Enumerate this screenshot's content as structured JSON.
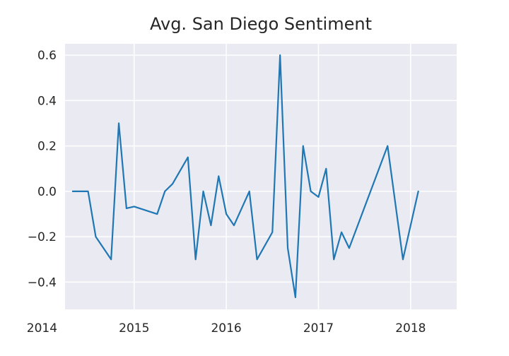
{
  "chart_data": {
    "type": "line",
    "title": "Avg. San Diego Sentiment",
    "xlabel": "",
    "ylabel": "",
    "x_ticks": [
      "2014",
      "2015",
      "2016",
      "2017",
      "2018"
    ],
    "y_ticks": [
      "0.6",
      "0.4",
      "0.2",
      "0.0",
      "−0.2",
      "−0.4"
    ],
    "y_tick_values": [
      0.6,
      0.4,
      0.2,
      0.0,
      -0.2,
      -0.4
    ],
    "x_range": [
      "2014-04",
      "2018-07"
    ],
    "ylim": [
      -0.52,
      0.65
    ],
    "grid": true,
    "background": "#eaeaf2",
    "series": [
      {
        "color": "#1f77b4",
        "points": [
          {
            "x": "2014-05",
            "y": 0.0
          },
          {
            "x": "2014-07",
            "y": 0.0
          },
          {
            "x": "2014-08",
            "y": -0.2
          },
          {
            "x": "2014-10",
            "y": -0.3
          },
          {
            "x": "2014-11",
            "y": 0.3
          },
          {
            "x": "2014-12",
            "y": -0.075
          },
          {
            "x": "2015-01",
            "y": -0.067
          },
          {
            "x": "2015-04",
            "y": -0.1
          },
          {
            "x": "2015-05",
            "y": 0.0
          },
          {
            "x": "2015-06",
            "y": 0.033
          },
          {
            "x": "2015-08",
            "y": 0.15
          },
          {
            "x": "2015-09",
            "y": -0.3
          },
          {
            "x": "2015-10",
            "y": 0.0
          },
          {
            "x": "2015-11",
            "y": -0.15
          },
          {
            "x": "2015-12",
            "y": 0.067
          },
          {
            "x": "2016-01",
            "y": -0.1
          },
          {
            "x": "2016-02",
            "y": -0.15
          },
          {
            "x": "2016-04",
            "y": 0.0
          },
          {
            "x": "2016-05",
            "y": -0.3
          },
          {
            "x": "2016-07",
            "y": -0.18
          },
          {
            "x": "2016-08",
            "y": 0.6
          },
          {
            "x": "2016-09",
            "y": -0.25
          },
          {
            "x": "2016-10",
            "y": -0.467
          },
          {
            "x": "2016-11",
            "y": 0.2
          },
          {
            "x": "2016-12",
            "y": 0.0
          },
          {
            "x": "2017-01",
            "y": -0.025
          },
          {
            "x": "2017-02",
            "y": 0.1
          },
          {
            "x": "2017-03",
            "y": -0.3
          },
          {
            "x": "2017-04",
            "y": -0.18
          },
          {
            "x": "2017-05",
            "y": -0.25
          },
          {
            "x": "2017-10",
            "y": 0.2
          },
          {
            "x": "2017-12",
            "y": -0.3
          },
          {
            "x": "2018-02",
            "y": 0.0
          }
        ]
      }
    ]
  }
}
